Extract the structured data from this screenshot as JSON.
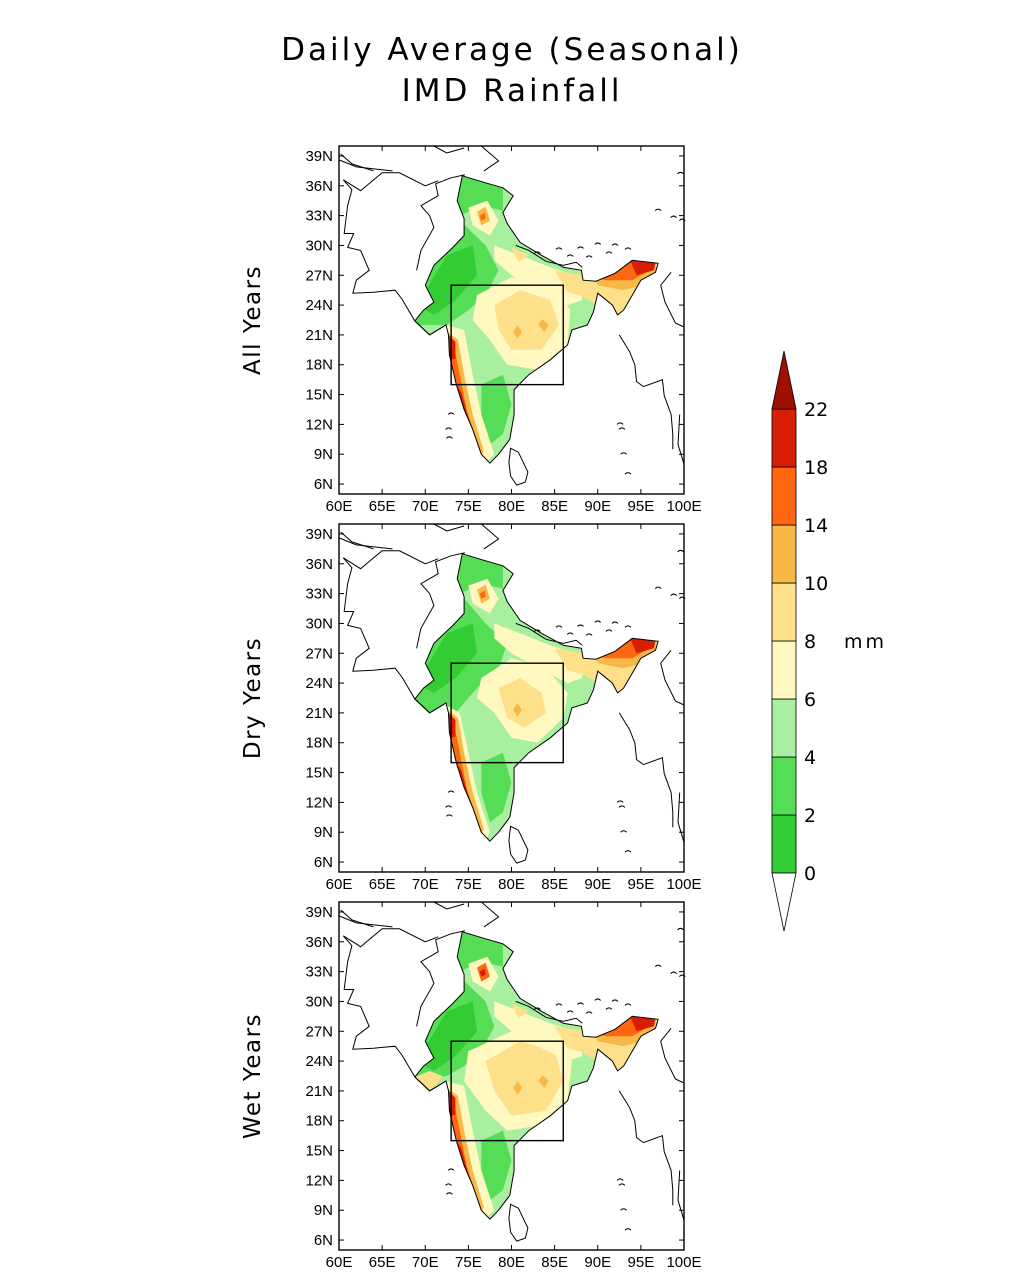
{
  "title_line1": "Daily Average (Seasonal)",
  "title_line2": "IMD Rainfall",
  "panels": [
    {
      "label": "All Years",
      "variant": "all"
    },
    {
      "label": "Dry Years",
      "variant": "dry"
    },
    {
      "label": "Wet Years",
      "variant": "wet"
    }
  ],
  "lat_ticks": [
    "39N",
    "36N",
    "33N",
    "30N",
    "27N",
    "24N",
    "21N",
    "18N",
    "15N",
    "12N",
    "9N",
    "6N"
  ],
  "lon_ticks": [
    "60E",
    "65E",
    "70E",
    "75E",
    "80E",
    "85E",
    "90E",
    "95E",
    "100E"
  ],
  "map_extent": {
    "lon_min": 60,
    "lon_max": 100,
    "lat_min": 5,
    "lat_max": 40
  },
  "region_box": {
    "lon_min": 73,
    "lon_max": 86,
    "lat_min": 16,
    "lat_max": 26
  },
  "colorbar": {
    "unit_label": "mm",
    "levels": [
      "0",
      "2",
      "4",
      "6",
      "8",
      "10",
      "14",
      "18",
      "22"
    ],
    "colors": [
      "#ffffff",
      "#33cc33",
      "#55dd55",
      "#a8f0a0",
      "#fff8c0",
      "#ffe08a",
      "#f8b848",
      "#ff6610",
      "#d81e05",
      "#a01000"
    ]
  }
}
